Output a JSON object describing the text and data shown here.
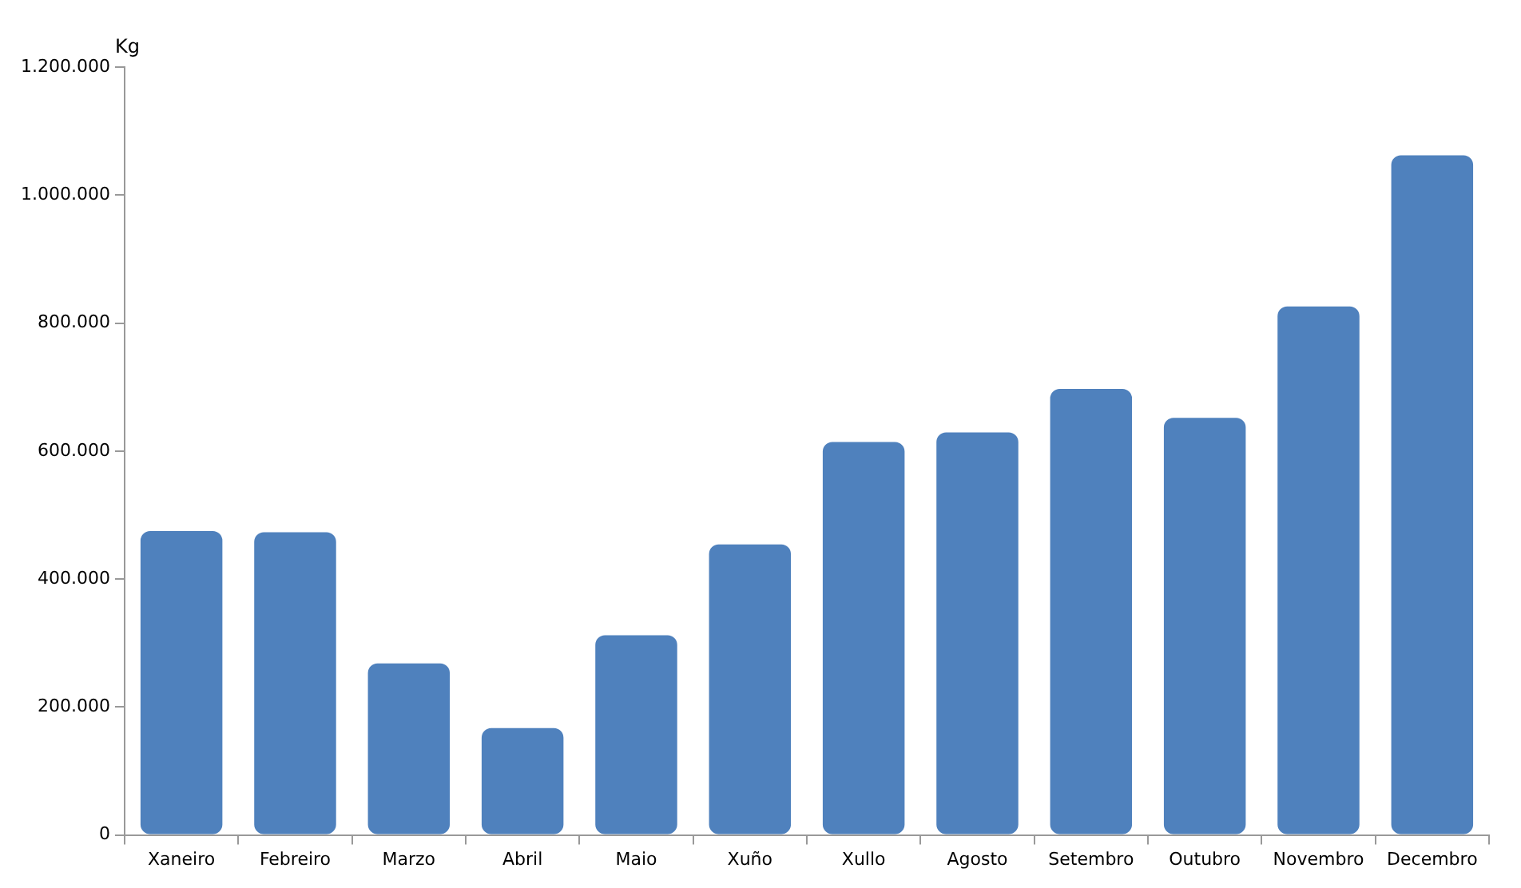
{
  "chart_data": {
    "type": "bar",
    "ylabel": "Kg",
    "categories": [
      "Xaneiro",
      "Febreiro",
      "Marzo",
      "Abril",
      "Maio",
      "Xuño",
      "Xullo",
      "Agosto",
      "Setembro",
      "Outubro",
      "Novembro",
      "Decembro"
    ],
    "values": [
      475000,
      473000,
      268000,
      167000,
      312000,
      454000,
      614000,
      629000,
      697000,
      652000,
      826000,
      1062000
    ],
    "color": "#4f81bd",
    "ylim": [
      0,
      1200000
    ],
    "yticks": [
      {
        "value": 0,
        "label": "0"
      },
      {
        "value": 200000,
        "label": "200.000"
      },
      {
        "value": 400000,
        "label": "400.000"
      },
      {
        "value": 600000,
        "label": "600.000"
      },
      {
        "value": 800000,
        "label": "800.000"
      },
      {
        "value": 1000000,
        "label": "1.000.000"
      },
      {
        "value": 1200000,
        "label": "1.200.000"
      }
    ],
    "grid": false,
    "legend": false
  }
}
